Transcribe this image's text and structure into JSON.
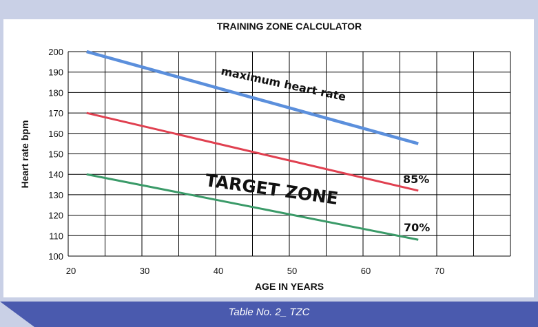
{
  "chart_data": {
    "type": "line",
    "title": "TRAINING ZONE CALCULATOR",
    "xlabel": "AGE IN YEARS",
    "ylabel": "Heart rate bpm",
    "xlim": [
      20,
      80
    ],
    "ylim": [
      100,
      200
    ],
    "xticks": [
      20,
      30,
      40,
      50,
      60,
      70
    ],
    "yticks": [
      100,
      110,
      120,
      130,
      140,
      150,
      160,
      170,
      180,
      190,
      200
    ],
    "grid": true,
    "series": [
      {
        "name": "maximum heart rate",
        "color": "#5b8fdc",
        "x": [
          22.5,
          67.5
        ],
        "y": [
          200,
          155
        ]
      },
      {
        "name": "85%",
        "color": "#e04050",
        "x": [
          22.5,
          67.5
        ],
        "y": [
          170,
          132
        ]
      },
      {
        "name": "70%",
        "color": "#3a9a68",
        "x": [
          22.5,
          67.5
        ],
        "y": [
          140,
          108
        ]
      }
    ],
    "annotations": [
      "TARGET ZONE"
    ]
  },
  "caption": "Table No. 2_ TZC",
  "colors": {
    "background": "#c9d0e6",
    "panel": "#ffffff",
    "grid": "#000000",
    "caption_bar": "#4a5aae"
  }
}
